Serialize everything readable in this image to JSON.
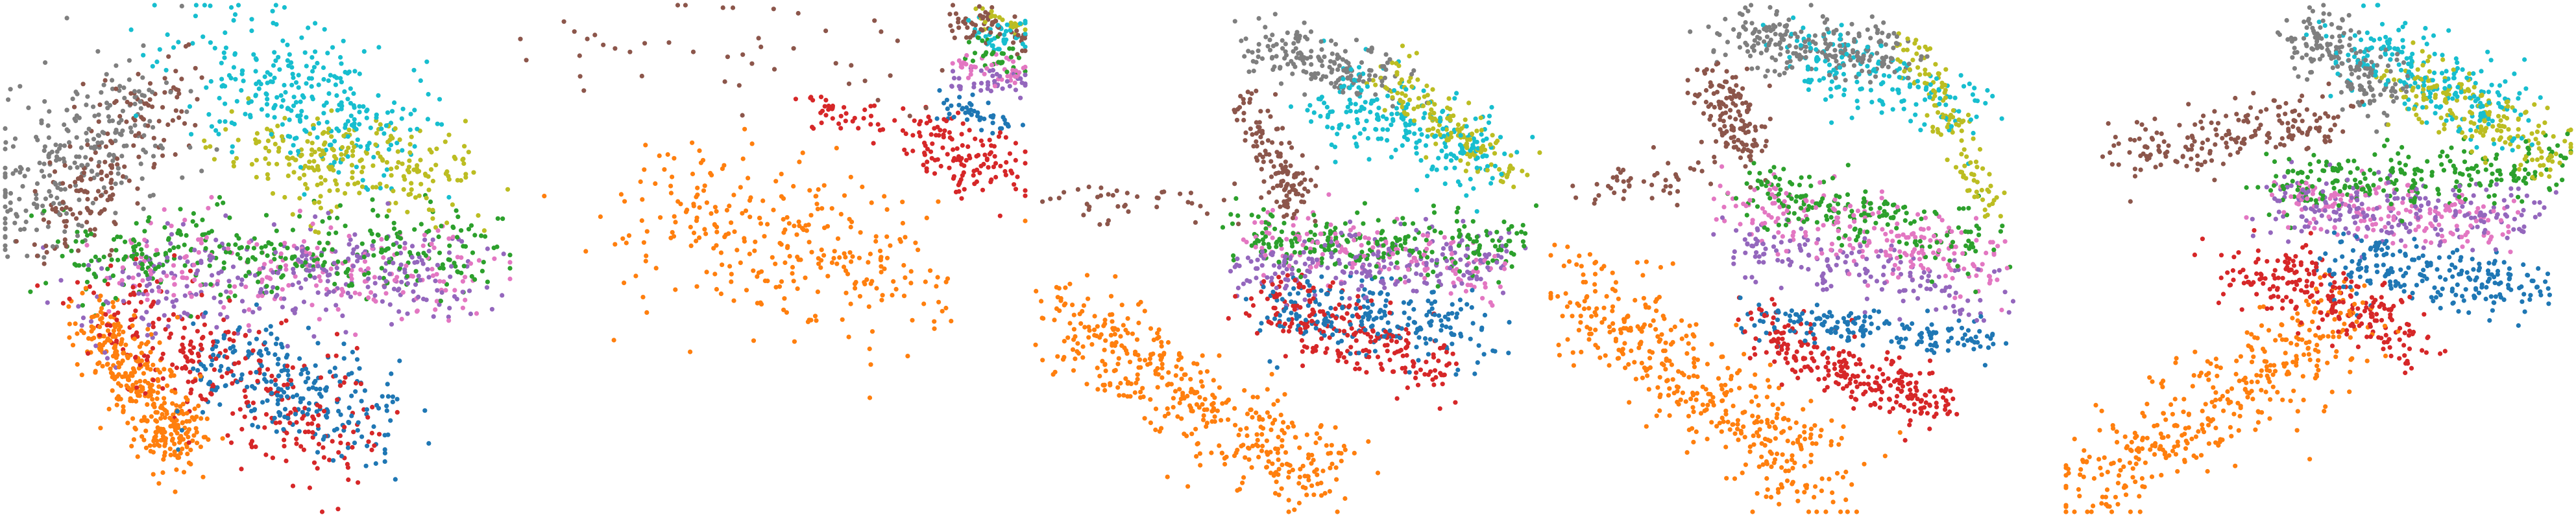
{
  "chart_data": {
    "type": "scatter",
    "legend": "none",
    "grid": false,
    "axes_visible": false,
    "series": [
      {
        "color": "#1f77b4"
      },
      {
        "color": "#ff7f0e"
      },
      {
        "color": "#2ca02c"
      },
      {
        "color": "#d62728"
      },
      {
        "color": "#9467bd"
      },
      {
        "color": "#8c564b"
      },
      {
        "color": "#e377c2"
      },
      {
        "color": "#7f7f7f"
      },
      {
        "color": "#bcbd22"
      },
      {
        "color": "#17becf"
      }
    ],
    "panels": [
      {
        "clusters": [
          {
            "series": 7,
            "n": 260,
            "x": [
              0.28,
              0.02
            ],
            "y": [
              0.2,
              0.38
            ],
            "r": 0.13
          },
          {
            "series": 5,
            "n": 170,
            "x": [
              0.08,
              0.34
            ],
            "y": [
              0.48,
              0.14
            ],
            "r": 0.09
          },
          {
            "series": 9,
            "n": 300,
            "x": [
              0.4,
              0.78
            ],
            "y": [
              0.1,
              0.26
            ],
            "r": 0.13
          },
          {
            "series": 8,
            "n": 240,
            "x": [
              0.48,
              0.92
            ],
            "y": [
              0.3,
              0.34
            ],
            "r": 0.09
          },
          {
            "series": 2,
            "n": 330,
            "x": [
              0.12,
              0.96
            ],
            "y": [
              0.5,
              0.48
            ],
            "r": 0.09
          },
          {
            "series": 4,
            "n": 300,
            "x": [
              0.2,
              0.92
            ],
            "y": [
              0.56,
              0.52
            ],
            "r": 0.11
          },
          {
            "series": 6,
            "n": 200,
            "x": [
              0.25,
              0.92
            ],
            "y": [
              0.52,
              0.54
            ],
            "r": 0.1
          },
          {
            "series": 0,
            "n": 240,
            "x": [
              0.42,
              0.74
            ],
            "y": [
              0.7,
              0.82
            ],
            "r": 0.11
          },
          {
            "series": 3,
            "n": 290,
            "x": [
              0.22,
              0.68
            ],
            "y": [
              0.62,
              0.86
            ],
            "r": 0.12
          },
          {
            "series": 1,
            "n": 380,
            "x": [
              0.18,
              0.36
            ],
            "y": [
              0.62,
              0.88
            ],
            "r": 0.07
          }
        ]
      },
      {
        "clusters": [
          {
            "series": 5,
            "n": 45,
            "x": [
              0.05,
              0.8
            ],
            "y": [
              0.05,
              0.12
            ],
            "r": 0.12
          },
          {
            "series": 5,
            "n": 60,
            "x": [
              0.86,
              1.0
            ],
            "y": [
              0.03,
              0.06
            ],
            "r": 0.04
          },
          {
            "series": 1,
            "n": 300,
            "x": [
              0.25,
              0.78
            ],
            "y": [
              0.4,
              0.55
            ],
            "r": 0.16
          },
          {
            "series": 3,
            "n": 130,
            "x": [
              0.78,
              0.96
            ],
            "y": [
              0.26,
              0.33
            ],
            "r": 0.06
          },
          {
            "series": 3,
            "n": 40,
            "x": [
              0.58,
              0.72
            ],
            "y": [
              0.2,
              0.22
            ],
            "r": 0.04
          },
          {
            "series": 9,
            "n": 40,
            "x": [
              0.9,
              1.0
            ],
            "y": [
              0.06,
              0.06
            ],
            "r": 0.03
          },
          {
            "series": 2,
            "n": 30,
            "x": [
              0.88,
              1.0
            ],
            "y": [
              0.09,
              0.12
            ],
            "r": 0.03
          },
          {
            "series": 4,
            "n": 40,
            "x": [
              0.86,
              1.0
            ],
            "y": [
              0.14,
              0.16
            ],
            "r": 0.03
          },
          {
            "series": 6,
            "n": 40,
            "x": [
              0.86,
              1.0
            ],
            "y": [
              0.12,
              0.14
            ],
            "r": 0.03
          },
          {
            "series": 0,
            "n": 45,
            "x": [
              0.84,
              1.0
            ],
            "y": [
              0.2,
              0.24
            ],
            "r": 0.03
          },
          {
            "series": 8,
            "n": 20,
            "x": [
              0.92,
              1.0
            ],
            "y": [
              0.02,
              0.04
            ],
            "r": 0.02
          }
        ]
      },
      {
        "clusters": [
          {
            "series": 1,
            "n": 420,
            "x": [
              0.05,
              0.58
            ],
            "y": [
              0.62,
              0.94
            ],
            "r": 0.1
          },
          {
            "series": 5,
            "n": 130,
            "x": [
              0.42,
              0.52
            ],
            "y": [
              0.18,
              0.4
            ],
            "r": 0.05
          },
          {
            "series": 7,
            "n": 170,
            "x": [
              0.44,
              0.7
            ],
            "y": [
              0.08,
              0.14
            ],
            "r": 0.06
          },
          {
            "series": 9,
            "n": 230,
            "x": [
              0.6,
              0.9
            ],
            "y": [
              0.18,
              0.3
            ],
            "r": 0.08
          },
          {
            "series": 8,
            "n": 150,
            "x": [
              0.7,
              0.94
            ],
            "y": [
              0.14,
              0.34
            ],
            "r": 0.05
          },
          {
            "series": 2,
            "n": 240,
            "x": [
              0.4,
              0.96
            ],
            "y": [
              0.46,
              0.48
            ],
            "r": 0.06
          },
          {
            "series": 4,
            "n": 220,
            "x": [
              0.42,
              0.94
            ],
            "y": [
              0.52,
              0.5
            ],
            "r": 0.06
          },
          {
            "series": 6,
            "n": 150,
            "x": [
              0.44,
              0.92
            ],
            "y": [
              0.44,
              0.54
            ],
            "r": 0.06
          },
          {
            "series": 0,
            "n": 220,
            "x": [
              0.48,
              0.88
            ],
            "y": [
              0.6,
              0.64
            ],
            "r": 0.07
          },
          {
            "series": 3,
            "n": 230,
            "x": [
              0.44,
              0.8
            ],
            "y": [
              0.58,
              0.72
            ],
            "r": 0.07
          },
          {
            "series": 5,
            "n": 40,
            "x": [
              0.02,
              0.4
            ],
            "y": [
              0.4,
              0.38
            ],
            "r": 0.05
          }
        ]
      },
      {
        "clusters": [
          {
            "series": 1,
            "n": 420,
            "x": [
              0.03,
              0.56
            ],
            "y": [
              0.54,
              0.96
            ],
            "r": 0.1
          },
          {
            "series": 7,
            "n": 230,
            "x": [
              0.34,
              0.7
            ],
            "y": [
              0.06,
              0.1
            ],
            "r": 0.06
          },
          {
            "series": 5,
            "n": 140,
            "x": [
              0.32,
              0.4
            ],
            "y": [
              0.14,
              0.3
            ],
            "r": 0.05
          },
          {
            "series": 9,
            "n": 170,
            "x": [
              0.48,
              0.86
            ],
            "y": [
              0.08,
              0.22
            ],
            "r": 0.07
          },
          {
            "series": 8,
            "n": 120,
            "x": [
              0.7,
              0.88
            ],
            "y": [
              0.06,
              0.4
            ],
            "r": 0.04
          },
          {
            "series": 2,
            "n": 200,
            "x": [
              0.38,
              0.86
            ],
            "y": [
              0.36,
              0.48
            ],
            "r": 0.07
          },
          {
            "series": 6,
            "n": 220,
            "x": [
              0.36,
              0.88
            ],
            "y": [
              0.38,
              0.52
            ],
            "r": 0.07
          },
          {
            "series": 4,
            "n": 160,
            "x": [
              0.36,
              0.86
            ],
            "y": [
              0.46,
              0.58
            ],
            "r": 0.06
          },
          {
            "series": 0,
            "n": 170,
            "x": [
              0.38,
              0.86
            ],
            "y": [
              0.62,
              0.66
            ],
            "r": 0.04
          },
          {
            "series": 3,
            "n": 260,
            "x": [
              0.4,
              0.78
            ],
            "y": [
              0.64,
              0.8
            ],
            "r": 0.06
          },
          {
            "series": 5,
            "n": 45,
            "x": [
              0.06,
              0.28
            ],
            "y": [
              0.36,
              0.34
            ],
            "r": 0.05
          }
        ]
      },
      {
        "clusters": [
          {
            "series": 1,
            "n": 380,
            "x": [
              0.02,
              0.58
            ],
            "y": [
              0.96,
              0.62
            ],
            "r": 0.1
          },
          {
            "series": 5,
            "n": 190,
            "x": [
              0.1,
              0.54
            ],
            "y": [
              0.3,
              0.22
            ],
            "r": 0.06
          },
          {
            "series": 7,
            "n": 180,
            "x": [
              0.46,
              0.64
            ],
            "y": [
              0.04,
              0.18
            ],
            "r": 0.07
          },
          {
            "series": 9,
            "n": 220,
            "x": [
              0.54,
              0.88
            ],
            "y": [
              0.06,
              0.22
            ],
            "r": 0.08
          },
          {
            "series": 8,
            "n": 200,
            "x": [
              0.66,
              0.98
            ],
            "y": [
              0.14,
              0.3
            ],
            "r": 0.07
          },
          {
            "series": 2,
            "n": 240,
            "x": [
              0.4,
              0.98
            ],
            "y": [
              0.36,
              0.32
            ],
            "r": 0.06
          },
          {
            "series": 4,
            "n": 210,
            "x": [
              0.4,
              0.92
            ],
            "y": [
              0.4,
              0.42
            ],
            "r": 0.06
          },
          {
            "series": 6,
            "n": 170,
            "x": [
              0.42,
              0.88
            ],
            "y": [
              0.38,
              0.44
            ],
            "r": 0.06
          },
          {
            "series": 0,
            "n": 220,
            "x": [
              0.52,
              0.92
            ],
            "y": [
              0.5,
              0.56
            ],
            "r": 0.07
          },
          {
            "series": 3,
            "n": 240,
            "x": [
              0.34,
              0.7
            ],
            "y": [
              0.5,
              0.66
            ],
            "r": 0.07
          }
        ]
      }
    ]
  }
}
